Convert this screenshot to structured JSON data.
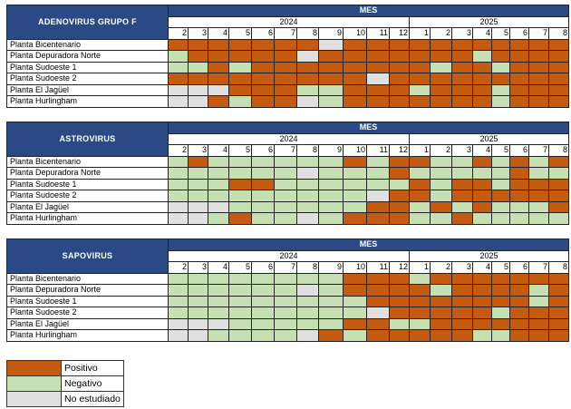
{
  "mes_label": "MES",
  "years": [
    {
      "label": "2024",
      "months": [
        "2",
        "3",
        "4",
        "5",
        "6",
        "7",
        "8",
        "9",
        "10",
        "11",
        "12"
      ]
    },
    {
      "label": "2025",
      "months": [
        "1",
        "2",
        "3",
        "4",
        "5",
        "6",
        "7",
        "8"
      ]
    }
  ],
  "colors": {
    "P": "#c55a11",
    "N": "#c6e0b4",
    "X": "#e0e0e0",
    "header": "#2b4a85"
  },
  "chart_data": [
    {
      "type": "heatmap",
      "title": "ADENOVIRUS GRUPO F",
      "rows": [
        {
          "label": "Planta Bicentenario",
          "values": "PPPPPPPXPPPPPPPPPPP"
        },
        {
          "label": "Planta Depuradora Norte",
          "values": "NPPPPPXPPPPPPPNPPPP"
        },
        {
          "label": "Planta Sudoeste 1",
          "values": "NNPNPPPPPPPPNPPNPPP"
        },
        {
          "label": "Planta Sudoeste 2",
          "values": "PPPPPPPPPXPPPPPPPPP"
        },
        {
          "label": "Planta El Jagüel",
          "values": "XXXPPPNNPPPNPPPNPPP"
        },
        {
          "label": "Planta Hurlingham",
          "values": "XXPNPPXNPPPPPPPNPPP"
        }
      ]
    },
    {
      "type": "heatmap",
      "title": "ASTROVIRUS",
      "rows": [
        {
          "label": "Planta Bicentenario",
          "values": "NPNNNNNNPNPPNNPNPNP"
        },
        {
          "label": "Planta Depuradora Norte",
          "values": "NNNNNNXNNNPNNNNNPNN"
        },
        {
          "label": "Planta Sudoeste 1",
          "values": "NNNPPNNNNNNPNPPNPPP"
        },
        {
          "label": "Planta Sudoeste 2",
          "values": "NNNNNNNNNXPPNPPPPPP"
        },
        {
          "label": "Planta El Jagüel",
          "values": "XXXNNNNNNPPNPNPNNNP"
        },
        {
          "label": "Planta Hurlingham",
          "values": "XXNPNNXNPPPNNPNNNNN"
        }
      ]
    },
    {
      "type": "heatmap",
      "title": "SAPOVIRUS",
      "rows": [
        {
          "label": "Planta Bicentenario",
          "values": "NNNNNNNNPPPNPPPPPPP"
        },
        {
          "label": "Planta Depuradora Norte",
          "values": "NNNNNNXNPPPPNPPPPNP"
        },
        {
          "label": "Planta Sudoeste 1",
          "values": "NNNNNNNNNPPPPPPPPNP"
        },
        {
          "label": "Planta Sudoeste 2",
          "values": "NNNNNNNNNXPPPPPNPPP"
        },
        {
          "label": "Planta El Jagüel",
          "values": "XXXNNNNNPPNNPPPPPPP"
        },
        {
          "label": "Planta Hurlingham",
          "values": "XXNNNNXPNPPPPPNNPPP"
        }
      ]
    }
  ],
  "legend": [
    {
      "key": "P",
      "label": "Positivo"
    },
    {
      "key": "N",
      "label": "Negativo"
    },
    {
      "key": "X",
      "label": "No estudiado"
    }
  ]
}
